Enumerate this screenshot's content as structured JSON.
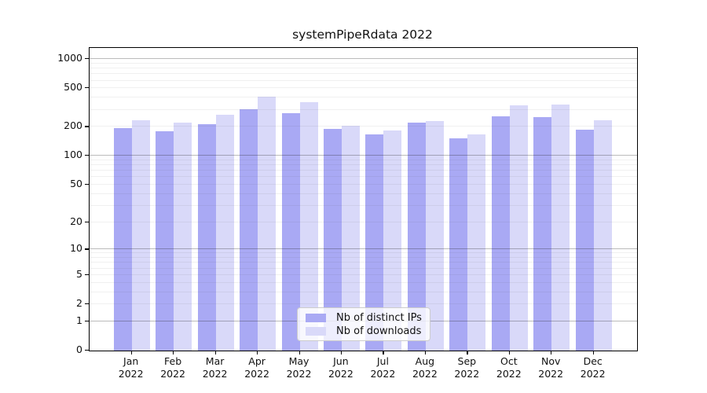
{
  "chart_data": {
    "type": "bar",
    "title": "systemPipeRdata 2022",
    "yscale": "log1p",
    "ylim": [
      0,
      1300
    ],
    "grid": "on",
    "legend_position": "lower center",
    "categories": [
      "Jan",
      "Feb",
      "Mar",
      "Apr",
      "May",
      "Jun",
      "Jul",
      "Aug",
      "Sep",
      "Oct",
      "Nov",
      "Dec"
    ],
    "x_year": "2022",
    "y_tick_values": [
      0,
      1,
      2,
      5,
      10,
      20,
      50,
      100,
      200,
      500,
      1000
    ],
    "major_gridlines": [
      1,
      10,
      100,
      1000
    ],
    "minor_gridlines": [
      2,
      3,
      4,
      5,
      6,
      7,
      8,
      9,
      20,
      30,
      40,
      50,
      60,
      70,
      80,
      90,
      200,
      300,
      400,
      500,
      600,
      700,
      800,
      900
    ],
    "series": [
      {
        "name": "Nb of distinct IPs",
        "color": "#a9a9f4",
        "values": [
          195,
          181,
          214,
          306,
          277,
          191,
          167,
          220,
          152,
          257,
          253,
          188
        ]
      },
      {
        "name": "Nb of downloads",
        "color": "#d9d9f9",
        "values": [
          233,
          223,
          265,
          406,
          358,
          205,
          183,
          230,
          167,
          331,
          339,
          232
        ]
      }
    ],
    "colors": {
      "spine": "#000000",
      "text": "#111111",
      "major_grid": "#bababa",
      "minor_grid": "#ececec",
      "legend_border": "#cccccc",
      "series_dark": "#a9a9f4",
      "series_light": "#d9d9f9"
    }
  }
}
